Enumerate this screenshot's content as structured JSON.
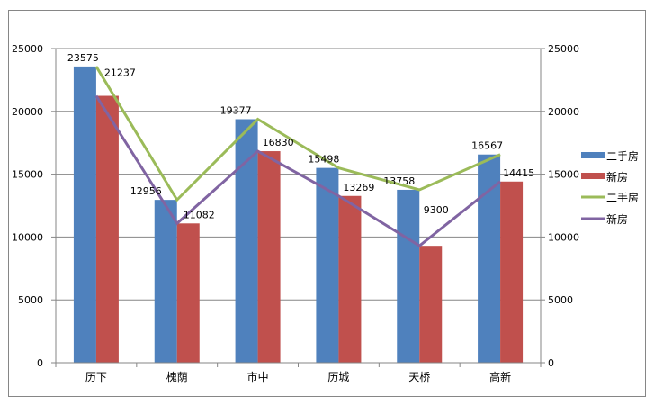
{
  "chart_data": {
    "type": "bar+line",
    "title": "",
    "xlabel": "",
    "ylabel": "",
    "ylim": [
      0,
      25000
    ],
    "y2lim": [
      0,
      25000
    ],
    "yticks": [
      0,
      5000,
      10000,
      15000,
      20000,
      25000
    ],
    "grid": true,
    "legend_position": "right",
    "categories": [
      "历下",
      "槐荫",
      "市中",
      "历城",
      "天桥",
      "高新"
    ],
    "series": [
      {
        "name": "二手房",
        "type": "bar",
        "color": "#4F81BD",
        "values": [
          23575,
          12956,
          19377,
          15498,
          13758,
          16567
        ]
      },
      {
        "name": "新房",
        "type": "bar",
        "color": "#C0504D",
        "values": [
          21237,
          11082,
          16830,
          13269,
          9300,
          14415
        ]
      },
      {
        "name": "二手房",
        "type": "line",
        "color": "#9BBB59",
        "values": [
          23575,
          12956,
          19377,
          15498,
          13758,
          16567
        ]
      },
      {
        "name": "新房",
        "type": "line",
        "color": "#8064A2",
        "values": [
          21237,
          11082,
          16830,
          13269,
          9300,
          14415
        ]
      }
    ]
  }
}
